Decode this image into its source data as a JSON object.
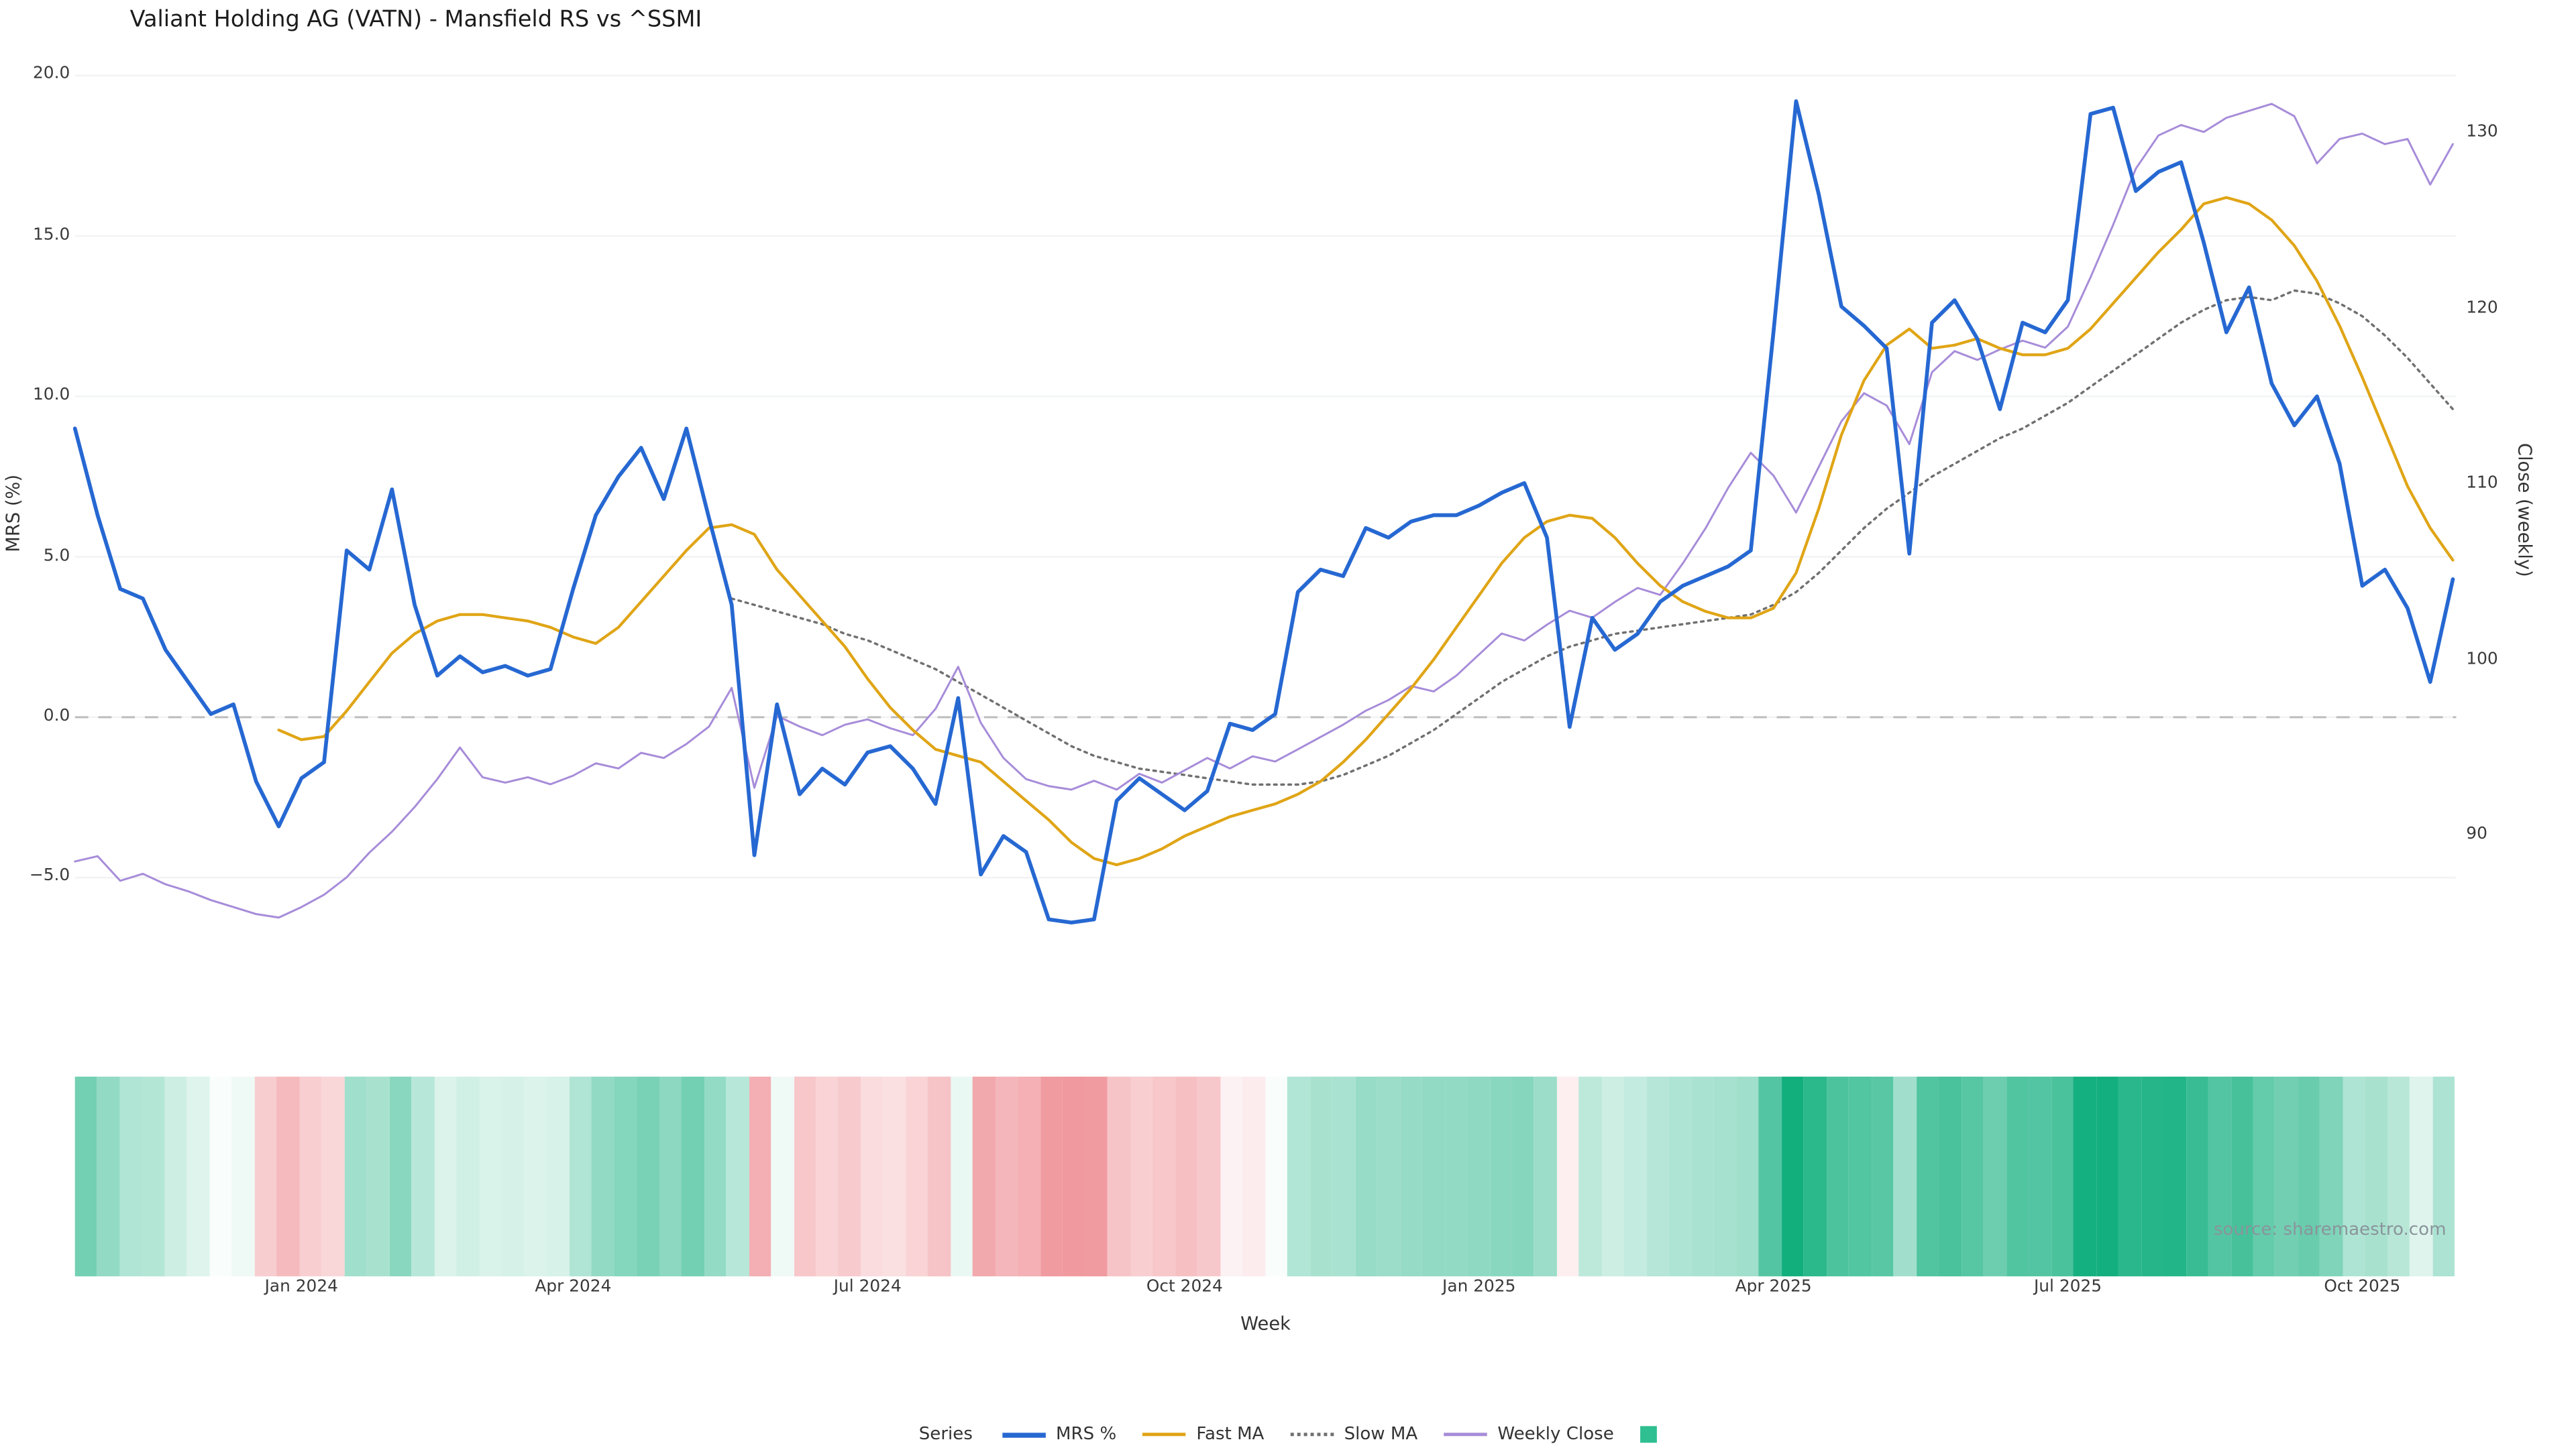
{
  "title": "Valiant Holding AG (VATN) - Mansfield RS vs ^SSMI",
  "source": "source: sharemaestro.com",
  "legend": {
    "label": "Series",
    "items": [
      {
        "name": "MRS %",
        "color": "#2668d2",
        "swatch": "line",
        "line_width": 3
      },
      {
        "name": "Fast MA",
        "color": "#e0a516",
        "swatch": "line",
        "line_width": 2
      },
      {
        "name": "Slow MA",
        "color": "#707070",
        "swatch": "dotted",
        "line_width": 2
      },
      {
        "name": "Weekly Close",
        "color": "#a78cd9",
        "swatch": "line",
        "line_width": 2
      },
      {
        "name": "",
        "color": "#2fbf90",
        "swatch": "square"
      }
    ]
  },
  "chart_data": {
    "type": "line",
    "title": "Valiant Holding AG (VATN) - Mansfield RS vs ^SSMI",
    "xlabel": "Week",
    "ylabel_left": "MRS (%)",
    "ylabel_right": "Close (weekly)",
    "x_tick_labels": [
      "Jan 2024",
      "Apr 2024",
      "Jul 2024",
      "Oct 2024",
      "Jan 2025",
      "Apr 2025",
      "Jul 2025",
      "Oct 2025"
    ],
    "x_tick_weeks": [
      10,
      22,
      35,
      49,
      62,
      75,
      88,
      101
    ],
    "n_weeks": 106,
    "y_left_tick_labels": [
      "20.0",
      "15.0",
      "10.0",
      "5.0",
      "0.0",
      "−5.0"
    ],
    "y_left_tick_values": [
      20,
      15,
      10,
      5,
      0,
      -5
    ],
    "y_left_range": [
      -7.83,
      20.54
    ],
    "y_right_tick_labels": [
      "130",
      "120",
      "110",
      "100",
      "90"
    ],
    "y_right_tick_values": [
      130,
      120,
      110,
      100,
      90
    ],
    "y_right_range": [
      82.4,
      134.3
    ],
    "zero_line": 0,
    "grid": true,
    "legend_position": "bottom-center",
    "series": [
      {
        "name": "MRS %",
        "axis": "left",
        "color": "#2668d2",
        "width": 2.3,
        "dash": null,
        "values": [
          9.0,
          6.3,
          4.0,
          3.7,
          2.1,
          1.1,
          0.1,
          0.4,
          -2.0,
          -3.4,
          -1.9,
          -1.4,
          5.2,
          4.6,
          7.1,
          3.5,
          1.3,
          1.9,
          1.4,
          1.6,
          1.3,
          1.5,
          4.0,
          6.3,
          7.5,
          8.4,
          6.8,
          9.0,
          6.2,
          3.5,
          -4.3,
          0.4,
          -2.4,
          -1.6,
          -2.1,
          -1.1,
          -0.9,
          -1.6,
          -2.7,
          0.6,
          -4.9,
          -3.7,
          -4.2,
          -6.3,
          -6.4,
          -6.3,
          -2.6,
          -1.9,
          -2.4,
          -2.9,
          -2.3,
          -0.2,
          -0.4,
          0.1,
          3.9,
          4.6,
          4.4,
          5.9,
          5.6,
          6.1,
          6.3,
          6.3,
          6.6,
          7.0,
          7.3,
          5.6,
          -0.3,
          3.1,
          2.1,
          2.6,
          3.6,
          4.1,
          4.4,
          4.7,
          5.2,
          12.0,
          19.2,
          16.3,
          12.8,
          12.2,
          11.5,
          5.1,
          12.3,
          13.0,
          11.8,
          9.6,
          12.3,
          12.0,
          13.0,
          18.8,
          19.0,
          16.4,
          17.0,
          17.3,
          14.8,
          12.0,
          13.4,
          10.4,
          9.1,
          10.0,
          7.9,
          4.1,
          4.6,
          3.4,
          1.1,
          4.3
        ]
      },
      {
        "name": "Fast MA",
        "axis": "left",
        "color": "#e0a516",
        "width": 1.7,
        "dash": null,
        "values": [
          null,
          null,
          null,
          null,
          null,
          null,
          null,
          null,
          null,
          -0.4,
          -0.7,
          -0.6,
          0.2,
          1.1,
          2.0,
          2.6,
          3.0,
          3.2,
          3.2,
          3.1,
          3.0,
          2.8,
          2.5,
          2.3,
          2.8,
          3.6,
          4.4,
          5.2,
          5.9,
          6.0,
          5.7,
          4.6,
          3.8,
          3.0,
          2.2,
          1.2,
          0.3,
          -0.4,
          -1.0,
          -1.2,
          -1.4,
          -2.0,
          -2.6,
          -3.2,
          -3.9,
          -4.4,
          -4.6,
          -4.4,
          -4.1,
          -3.7,
          -3.4,
          -3.1,
          -2.9,
          -2.7,
          -2.4,
          -2.0,
          -1.4,
          -0.7,
          0.1,
          0.9,
          1.8,
          2.8,
          3.8,
          4.8,
          5.6,
          6.1,
          6.3,
          6.2,
          5.6,
          4.8,
          4.1,
          3.6,
          3.3,
          3.1,
          3.1,
          3.4,
          4.5,
          6.5,
          8.8,
          10.5,
          11.6,
          12.1,
          11.5,
          11.6,
          11.8,
          11.5,
          11.3,
          11.3,
          11.5,
          12.1,
          12.9,
          13.7,
          14.5,
          15.2,
          16.0,
          16.2,
          16.0,
          15.5,
          14.7,
          13.6,
          12.2,
          10.6,
          8.9,
          7.2,
          5.9,
          4.9
        ]
      },
      {
        "name": "Slow MA",
        "axis": "left",
        "color": "#707070",
        "width": 1.4,
        "dash": "1.5 2.8",
        "values": [
          null,
          null,
          null,
          null,
          null,
          null,
          null,
          null,
          null,
          null,
          null,
          null,
          null,
          null,
          null,
          null,
          null,
          null,
          null,
          null,
          null,
          null,
          null,
          null,
          null,
          null,
          null,
          null,
          null,
          3.7,
          3.5,
          3.3,
          3.1,
          2.9,
          2.6,
          2.4,
          2.1,
          1.8,
          1.5,
          1.1,
          0.7,
          0.3,
          -0.1,
          -0.5,
          -0.9,
          -1.2,
          -1.4,
          -1.6,
          -1.7,
          -1.8,
          -1.9,
          -2.0,
          -2.1,
          -2.1,
          -2.1,
          -2.0,
          -1.8,
          -1.5,
          -1.2,
          -0.8,
          -0.4,
          0.1,
          0.6,
          1.1,
          1.5,
          1.9,
          2.2,
          2.4,
          2.6,
          2.7,
          2.8,
          2.9,
          3.0,
          3.1,
          3.2,
          3.5,
          3.9,
          4.5,
          5.2,
          5.9,
          6.5,
          7.0,
          7.5,
          7.9,
          8.3,
          8.7,
          9.0,
          9.4,
          9.8,
          10.3,
          10.8,
          11.3,
          11.8,
          12.3,
          12.7,
          13.0,
          13.1,
          13.0,
          13.3,
          13.2,
          12.9,
          12.5,
          11.9,
          11.2,
          10.4,
          9.6
        ]
      },
      {
        "name": "Weekly Close",
        "axis": "right",
        "color": "#a78cd9",
        "width": 1.2,
        "dash": null,
        "values": [
          88.5,
          88.8,
          87.4,
          87.8,
          87.2,
          86.8,
          86.3,
          85.9,
          85.5,
          85.3,
          85.9,
          86.6,
          87.6,
          89.0,
          90.2,
          91.6,
          93.2,
          95.0,
          93.3,
          93.0,
          93.3,
          92.9,
          93.4,
          94.1,
          93.8,
          94.7,
          94.4,
          95.2,
          96.2,
          98.4,
          92.7,
          96.8,
          96.2,
          95.7,
          96.3,
          96.6,
          96.1,
          95.7,
          97.2,
          99.6,
          96.4,
          94.4,
          93.2,
          92.8,
          92.6,
          93.1,
          92.6,
          93.5,
          93.0,
          93.7,
          94.4,
          93.8,
          94.5,
          94.2,
          94.9,
          95.6,
          96.3,
          97.1,
          97.7,
          98.5,
          98.2,
          99.1,
          100.3,
          101.5,
          101.1,
          102.0,
          102.8,
          102.4,
          103.3,
          104.1,
          103.7,
          105.5,
          107.5,
          109.8,
          111.8,
          110.5,
          108.4,
          111.0,
          113.6,
          115.2,
          114.5,
          112.3,
          116.4,
          117.6,
          117.1,
          117.7,
          118.2,
          117.8,
          119.0,
          121.8,
          124.8,
          128.0,
          129.9,
          130.5,
          130.1,
          130.9,
          131.3,
          131.7,
          131.0,
          128.3,
          129.7,
          130.0,
          129.4,
          129.7,
          127.1,
          129.4
        ]
      }
    ],
    "heatmap": {
      "source_series": "MRS %",
      "positive_color": "#0fae7c",
      "negative_color": "#f0989d",
      "domain_positive": 19.5,
      "domain_negative": 6.6
    }
  }
}
